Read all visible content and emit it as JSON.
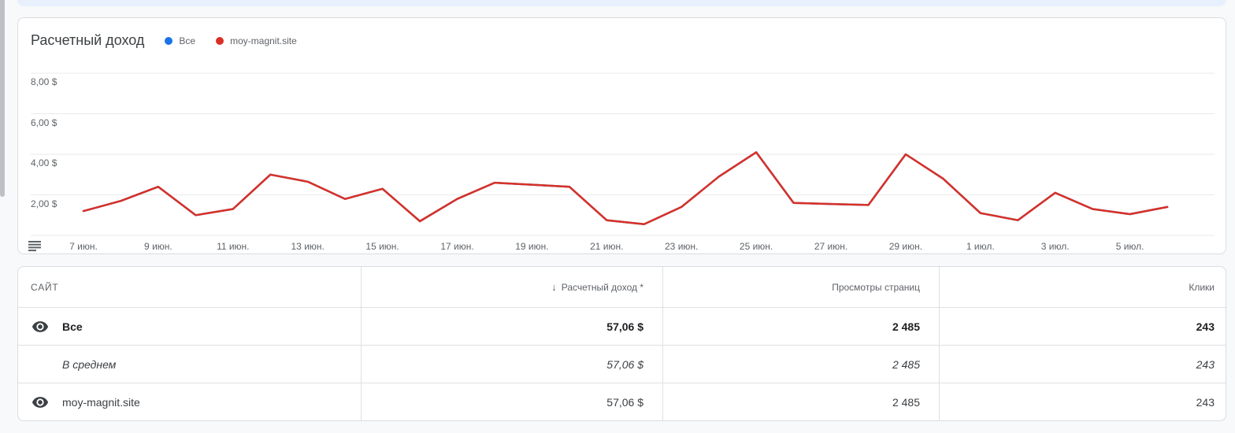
{
  "page": {
    "background": "#f8f9fa"
  },
  "chart": {
    "title": "Расчетный доход",
    "legend": [
      {
        "label": "Все",
        "color": "#1a73e8"
      },
      {
        "label": "moy-magnit.site",
        "color": "#d93025"
      }
    ]
  },
  "chart_data": {
    "type": "line",
    "title": "Расчетный доход",
    "xlabel": "",
    "ylabel": "",
    "ylim": [
      0,
      8.8
    ],
    "grid": true,
    "legend_position": "top",
    "currency": "$",
    "y_grid_values": [
      0,
      2,
      4,
      6,
      8
    ],
    "y_ticks": [
      {
        "value": 2,
        "label": "2,00 $"
      },
      {
        "value": 4,
        "label": "4,00 $"
      },
      {
        "value": 6,
        "label": "6,00 $"
      },
      {
        "value": 8,
        "label": "8,00 $"
      }
    ],
    "categories": [
      "7 июн.",
      "8 июн.",
      "9 июн.",
      "10 июн.",
      "11 июн.",
      "12 июн.",
      "13 июн.",
      "14 июн.",
      "15 июн.",
      "16 июн.",
      "17 июн.",
      "18 июн.",
      "19 июн.",
      "20 июн.",
      "21 июн.",
      "22 июн.",
      "23 июн.",
      "24 июн.",
      "25 июн.",
      "26 июн.",
      "27 июн.",
      "28 июн.",
      "29 июн.",
      "30 июн.",
      "1 июл.",
      "2 июл.",
      "3 июл.",
      "4 июл.",
      "5 июл.",
      "6 июл."
    ],
    "x_tick_labels": [
      "7 июн.",
      "9 июн.",
      "11 июн.",
      "13 июн.",
      "15 июн.",
      "17 июн.",
      "19 июн.",
      "21 июн.",
      "23 июн.",
      "25 июн.",
      "27 июн.",
      "29 июн.",
      "1 июл.",
      "3 июл.",
      "5 июл."
    ],
    "x_tick_every": 2,
    "series": [
      {
        "name": "Все",
        "color": "#1a73e8",
        "values": [
          1.2,
          1.7,
          2.4,
          1.0,
          1.3,
          3.0,
          2.65,
          1.8,
          2.3,
          0.7,
          1.8,
          2.6,
          2.5,
          2.4,
          0.75,
          0.55,
          1.4,
          2.9,
          4.1,
          1.6,
          1.55,
          1.5,
          4.0,
          2.8,
          1.1,
          0.75,
          2.1,
          1.3,
          1.05,
          1.4
        ]
      },
      {
        "name": "moy-magnit.site",
        "color": "#d93025",
        "values": [
          1.2,
          1.7,
          2.4,
          1.0,
          1.3,
          3.0,
          2.65,
          1.8,
          2.3,
          0.7,
          1.8,
          2.6,
          2.5,
          2.4,
          0.75,
          0.55,
          1.4,
          2.9,
          4.1,
          1.6,
          1.55,
          1.5,
          4.0,
          2.8,
          1.1,
          0.75,
          2.1,
          1.3,
          1.05,
          1.4
        ]
      }
    ]
  },
  "table": {
    "sort_arrow": "↓",
    "columns": [
      {
        "label": "САЙТ"
      },
      {
        "label": "Расчетный доход *"
      },
      {
        "label": "Просмотры страниц"
      },
      {
        "label": "Клики"
      }
    ],
    "rows": [
      {
        "site": "Все",
        "income": "57,06 $",
        "pageviews": "2 485",
        "clicks": "243"
      },
      {
        "site": "В среднем",
        "income": "57,06 $",
        "pageviews": "2 485",
        "clicks": "243"
      },
      {
        "site": "moy-magnit.site",
        "income": "57,06 $",
        "pageviews": "2 485",
        "clicks": "243"
      }
    ]
  }
}
